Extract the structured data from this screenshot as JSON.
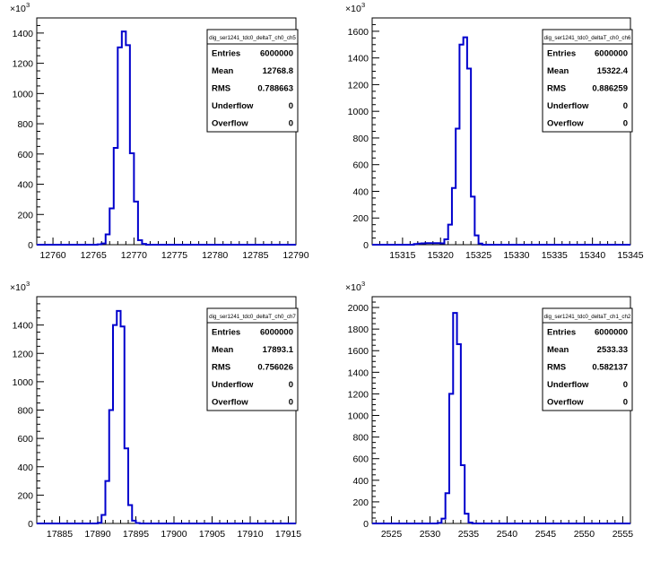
{
  "chart_data": [
    {
      "type": "bar",
      "histogram": true,
      "xlim": [
        12758,
        12790
      ],
      "xticks": [
        12760,
        12765,
        12770,
        12775,
        12780,
        12785,
        12790
      ],
      "xtick_labels": [
        "12760",
        "12765",
        "12770",
        "12775",
        "12780",
        "12785",
        "12790"
      ],
      "ylim": [
        0,
        1500
      ],
      "yticks": [
        0,
        200,
        400,
        600,
        800,
        1000,
        1200,
        1400
      ],
      "ytick_labels": [
        "0",
        "200",
        "400",
        "600",
        "800",
        "1000",
        "1200",
        "1400"
      ],
      "y_exponent_label": "×10",
      "y_exponent": "3",
      "bin_width": 0.5,
      "bins": [
        [
          12765.5,
          2
        ],
        [
          12766.0,
          8
        ],
        [
          12766.5,
          68
        ],
        [
          12767.0,
          240
        ],
        [
          12767.5,
          640
        ],
        [
          12768.0,
          1305
        ],
        [
          12768.5,
          1410
        ],
        [
          12769.0,
          1320
        ],
        [
          12769.5,
          605
        ],
        [
          12770.0,
          285
        ],
        [
          12770.5,
          30
        ],
        [
          12771.0,
          5
        ]
      ],
      "stats": {
        "title": "dig_ser1241_tdc0_deltaT_ch0_ch5",
        "rows": [
          {
            "label": "Entries",
            "value": "6000000"
          },
          {
            "label": "Mean",
            "value": "12768.8"
          },
          {
            "label": "RMS",
            "value": "0.788663"
          },
          {
            "label": "Underflow",
            "value": "0"
          },
          {
            "label": "Overflow",
            "value": "0"
          }
        ]
      }
    },
    {
      "type": "bar",
      "histogram": true,
      "xlim": [
        15311,
        15345
      ],
      "xticks": [
        15315,
        15320,
        15325,
        15330,
        15335,
        15340,
        15345
      ],
      "xtick_labels": [
        "15315",
        "15320",
        "15325",
        "15330",
        "15335",
        "15340",
        "15345"
      ],
      "ylim": [
        0,
        1700
      ],
      "yticks": [
        0,
        200,
        400,
        600,
        800,
        1000,
        1200,
        1400,
        1600
      ],
      "ytick_labels": [
        "0",
        "200",
        "400",
        "600",
        "800",
        "1000",
        "1200",
        "1400",
        "1600"
      ],
      "y_exponent_label": "×10",
      "y_exponent": "3",
      "bin_width": 0.5,
      "bins": [
        [
          15316.5,
          5
        ],
        [
          15317.0,
          8
        ],
        [
          15317.5,
          10
        ],
        [
          15318.0,
          12
        ],
        [
          15318.5,
          12
        ],
        [
          15319.0,
          12
        ],
        [
          15319.5,
          12
        ],
        [
          15320.0,
          10
        ],
        [
          15320.5,
          40
        ],
        [
          15321.0,
          150
        ],
        [
          15321.5,
          425
        ],
        [
          15322.0,
          870
        ],
        [
          15322.5,
          1500
        ],
        [
          15323.0,
          1555
        ],
        [
          15323.5,
          1320
        ],
        [
          15324.0,
          360
        ],
        [
          15324.5,
          70
        ],
        [
          15325.0,
          8
        ]
      ],
      "stats": {
        "title": "dig_ser1241_tdc0_deltaT_ch0_ch6",
        "rows": [
          {
            "label": "Entries",
            "value": "6000000"
          },
          {
            "label": "Mean",
            "value": "15322.4"
          },
          {
            "label": "RMS",
            "value": "0.886259"
          },
          {
            "label": "Underflow",
            "value": "0"
          },
          {
            "label": "Overflow",
            "value": "0"
          }
        ]
      }
    },
    {
      "type": "bar",
      "histogram": true,
      "xlim": [
        17882,
        17916
      ],
      "xticks": [
        17885,
        17890,
        17895,
        17900,
        17905,
        17910,
        17915
      ],
      "xtick_labels": [
        "17885",
        "17890",
        "17895",
        "17900",
        "17905",
        "17910",
        "17915"
      ],
      "ylim": [
        0,
        1600
      ],
      "yticks": [
        0,
        200,
        400,
        600,
        800,
        1000,
        1200,
        1400
      ],
      "ytick_labels": [
        "0",
        "200",
        "400",
        "600",
        "800",
        "1000",
        "1200",
        "1400"
      ],
      "y_exponent_label": "×10",
      "y_exponent": "3",
      "bin_width": 0.5,
      "bins": [
        [
          17890.0,
          5
        ],
        [
          17890.5,
          60
        ],
        [
          17891.0,
          300
        ],
        [
          17891.5,
          800
        ],
        [
          17892.0,
          1400
        ],
        [
          17892.5,
          1500
        ],
        [
          17893.0,
          1390
        ],
        [
          17893.5,
          530
        ],
        [
          17894.0,
          130
        ],
        [
          17894.5,
          20
        ],
        [
          17895.0,
          3
        ]
      ],
      "stats": {
        "title": "dig_ser1241_tdc0_deltaT_ch0_ch7",
        "rows": [
          {
            "label": "Entries",
            "value": "6000000"
          },
          {
            "label": "Mean",
            "value": "17893.1"
          },
          {
            "label": "RMS",
            "value": "0.756026"
          },
          {
            "label": "Underflow",
            "value": "0"
          },
          {
            "label": "Overflow",
            "value": "0"
          }
        ]
      }
    },
    {
      "type": "bar",
      "histogram": true,
      "xlim": [
        2522.5,
        2556
      ],
      "xticks": [
        2525,
        2530,
        2535,
        2540,
        2545,
        2550,
        2555
      ],
      "xtick_labels": [
        "2525",
        "2530",
        "2535",
        "2540",
        "2545",
        "2550",
        "2555"
      ],
      "ylim": [
        0,
        2100
      ],
      "yticks": [
        0,
        200,
        400,
        600,
        800,
        1000,
        1200,
        1400,
        1600,
        1800,
        2000
      ],
      "ytick_labels": [
        "0",
        "200",
        "400",
        "600",
        "800",
        "1000",
        "1200",
        "1400",
        "1600",
        "1800",
        "2000"
      ],
      "y_exponent_label": "×10",
      "y_exponent": "3",
      "bin_width": 0.5,
      "bins": [
        [
          2531.0,
          5
        ],
        [
          2531.5,
          45
        ],
        [
          2532.0,
          280
        ],
        [
          2532.5,
          1200
        ],
        [
          2533.0,
          1950
        ],
        [
          2533.5,
          1660
        ],
        [
          2534.0,
          540
        ],
        [
          2534.5,
          90
        ],
        [
          2535.0,
          8
        ]
      ],
      "stats": {
        "title": "dig_ser1241_tdc0_deltaT_ch1_ch2",
        "rows": [
          {
            "label": "Entries",
            "value": "6000000"
          },
          {
            "label": "Mean",
            "value": "2533.33"
          },
          {
            "label": "RMS",
            "value": "0.582137"
          },
          {
            "label": "Underflow",
            "value": "0"
          },
          {
            "label": "Overflow",
            "value": "0"
          }
        ]
      }
    }
  ],
  "colors": {
    "histogram_line": "#0000CC",
    "axis": "#000000",
    "background": "#ffffff"
  }
}
